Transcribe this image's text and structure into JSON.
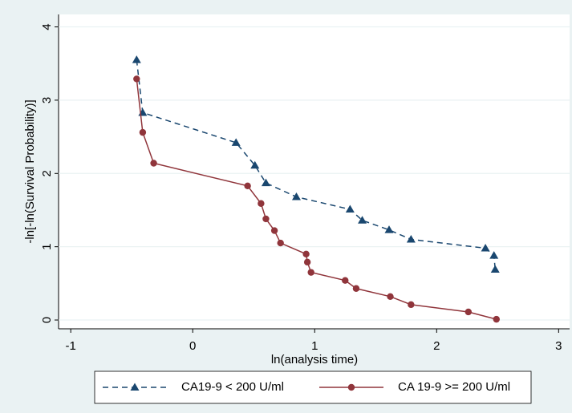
{
  "chart_data": {
    "type": "line",
    "x_label": "ln(analysis time)",
    "y_label": "-ln[-ln(Survival Probability)]",
    "xlim": [
      -1.1,
      3.09
    ],
    "ylim": [
      -0.12,
      4.17
    ],
    "xticks": [
      -1,
      0,
      1,
      2,
      3
    ],
    "yticks": [
      0,
      1,
      2,
      3,
      4
    ],
    "grid": true,
    "series": [
      {
        "name": "CA19-9 < 200 U/ml",
        "color": "#1a476f",
        "marker": "triangle",
        "dash": true,
        "x": [
          -0.46,
          -0.41,
          0.355,
          0.51,
          0.6,
          0.85,
          1.29,
          1.39,
          1.61,
          1.79,
          2.4,
          2.47,
          2.48
        ],
        "values": [
          3.55,
          2.83,
          2.42,
          2.11,
          1.87,
          1.68,
          1.51,
          1.36,
          1.23,
          1.1,
          0.98,
          0.88,
          0.69
        ]
      },
      {
        "name": "CA 19-9 >= 200 U/ml",
        "color": "#90353b",
        "marker": "circle",
        "dash": false,
        "x": [
          -0.46,
          -0.41,
          -0.32,
          0.45,
          0.56,
          0.6,
          0.67,
          0.72,
          0.93,
          0.94,
          0.97,
          1.25,
          1.34,
          1.62,
          1.79,
          2.26,
          2.49
        ],
        "values": [
          3.29,
          2.56,
          2.14,
          1.83,
          1.59,
          1.38,
          1.22,
          1.05,
          0.9,
          0.79,
          0.65,
          0.54,
          0.43,
          0.32,
          0.21,
          0.11,
          0.01
        ]
      }
    ]
  }
}
